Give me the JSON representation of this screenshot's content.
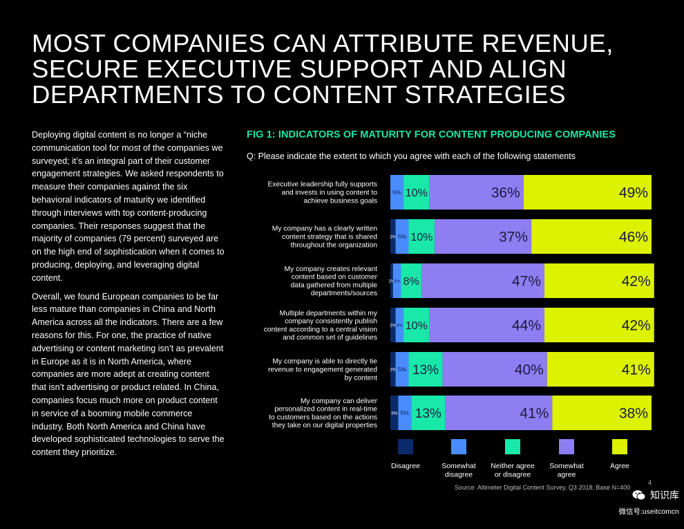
{
  "page": {
    "title_lines": [
      "MOST COMPANIES CAN ATTRIBUTE REVENUE,",
      "SECURE EXECUTIVE SUPPORT AND ALIGN",
      "DEPARTMENTS TO CONTENT STRATEGIES"
    ],
    "body_paragraphs": [
      "Deploying digital content is no longer a “niche communication tool for most of the companies we surveyed; it’s an integral part of their customer engagement strategies. We asked respondents to measure their companies against the six behavioral indicators of maturity we identified through interviews with top content-producing companies. Their responses suggest that the majority of companies (79 percent) surveyed are on the high end of sophistication when it comes to producing, deploying, and leveraging digital content.",
      "Overall, we found European companies to be far less mature than companies in China and North America across all the indicators. There are a few reasons for this. For one, the practice of native advertising or content marketing isn’t as prevalent in Europe as it is in North America, where companies are more adept at creating content that isn’t advertising or product related. In China, companies focus much more on product content in service of a booming mobile commerce industry. Both North America and China have developed sophisticated technologies to serve the content they prioritize."
    ],
    "page_number": "4",
    "watermark_brand": "知识库",
    "watermark_account": "微信号:useitcomcn",
    "watermark_icon": "wechat-icon"
  },
  "chart_data": {
    "type": "bar",
    "orientation": "horizontal-stacked-100",
    "title": "FIG 1: INDICATORS OF MATURITY FOR CONTENT PRODUCING COMPANIES",
    "subtitle": "Q: Please indicate the extent to which you agree with each of the following statements",
    "source": "Source: Altimeter Digital Content Survey, Q3 2018; Base N=400",
    "legend_position": "bottom",
    "categories": [
      "Executive leadership fully supports and invests in using content to achieve business goals",
      "My company has a clearly written content strategy that is shared throughout the organization",
      "My company creates relevant content based on customer data gathered from multiple departments/sources",
      "Multiple departments within my company consistently publish content according to a central vision and common set of guidelines",
      "My company is able to directly tie revenue to engagement generated by content",
      "My company can deliver personalized content in real-time to customers based on the actions they take on our digital properties"
    ],
    "category_lines": [
      [
        "Executive leadership fully supports",
        "and invests in using content to",
        "achieve business goals"
      ],
      [
        "My company has a clearly written",
        "content strategy that is shared",
        "throughout the organization"
      ],
      [
        "My company creates relevant",
        "content based on customer",
        "data gathered from multiple",
        "departments/sources"
      ],
      [
        "Multiple departments within my",
        "company consistently publish",
        "content according to a central vision",
        "and common set of guidelines"
      ],
      [
        "My company is able to directly tie",
        "revenue to engagement generated",
        "by content"
      ],
      [
        "My company can deliver",
        "personalized content in real-time",
        "to customers based on the actions",
        "they take on our digital properties"
      ]
    ],
    "series": [
      {
        "name": "Disagree",
        "legend_lines": [
          "Disagree"
        ],
        "color": "#0a2a6b",
        "values": [
          0,
          2,
          1,
          2,
          2,
          3
        ]
      },
      {
        "name": "Somewhat disagree",
        "legend_lines": [
          "Somewhat",
          "disagree"
        ],
        "color": "#4a8cff",
        "values": [
          5,
          5,
          3,
          3,
          5,
          5
        ]
      },
      {
        "name": "Neither agree or disagree",
        "legend_lines": [
          "Neither agree",
          "or disagree"
        ],
        "color": "#19e8a8",
        "values": [
          10,
          10,
          8,
          10,
          13,
          13
        ]
      },
      {
        "name": "Somewhat agree",
        "legend_lines": [
          "Somewhat",
          "agree"
        ],
        "color": "#8f7ef2",
        "values": [
          36,
          37,
          47,
          44,
          40,
          41
        ]
      },
      {
        "name": "Agree",
        "legend_lines": [
          "Agree"
        ],
        "color": "#ddf200",
        "values": [
          49,
          46,
          42,
          42,
          41,
          38
        ]
      }
    ],
    "xlim": [
      0,
      100
    ],
    "value_suffix": "%",
    "grid": false
  }
}
